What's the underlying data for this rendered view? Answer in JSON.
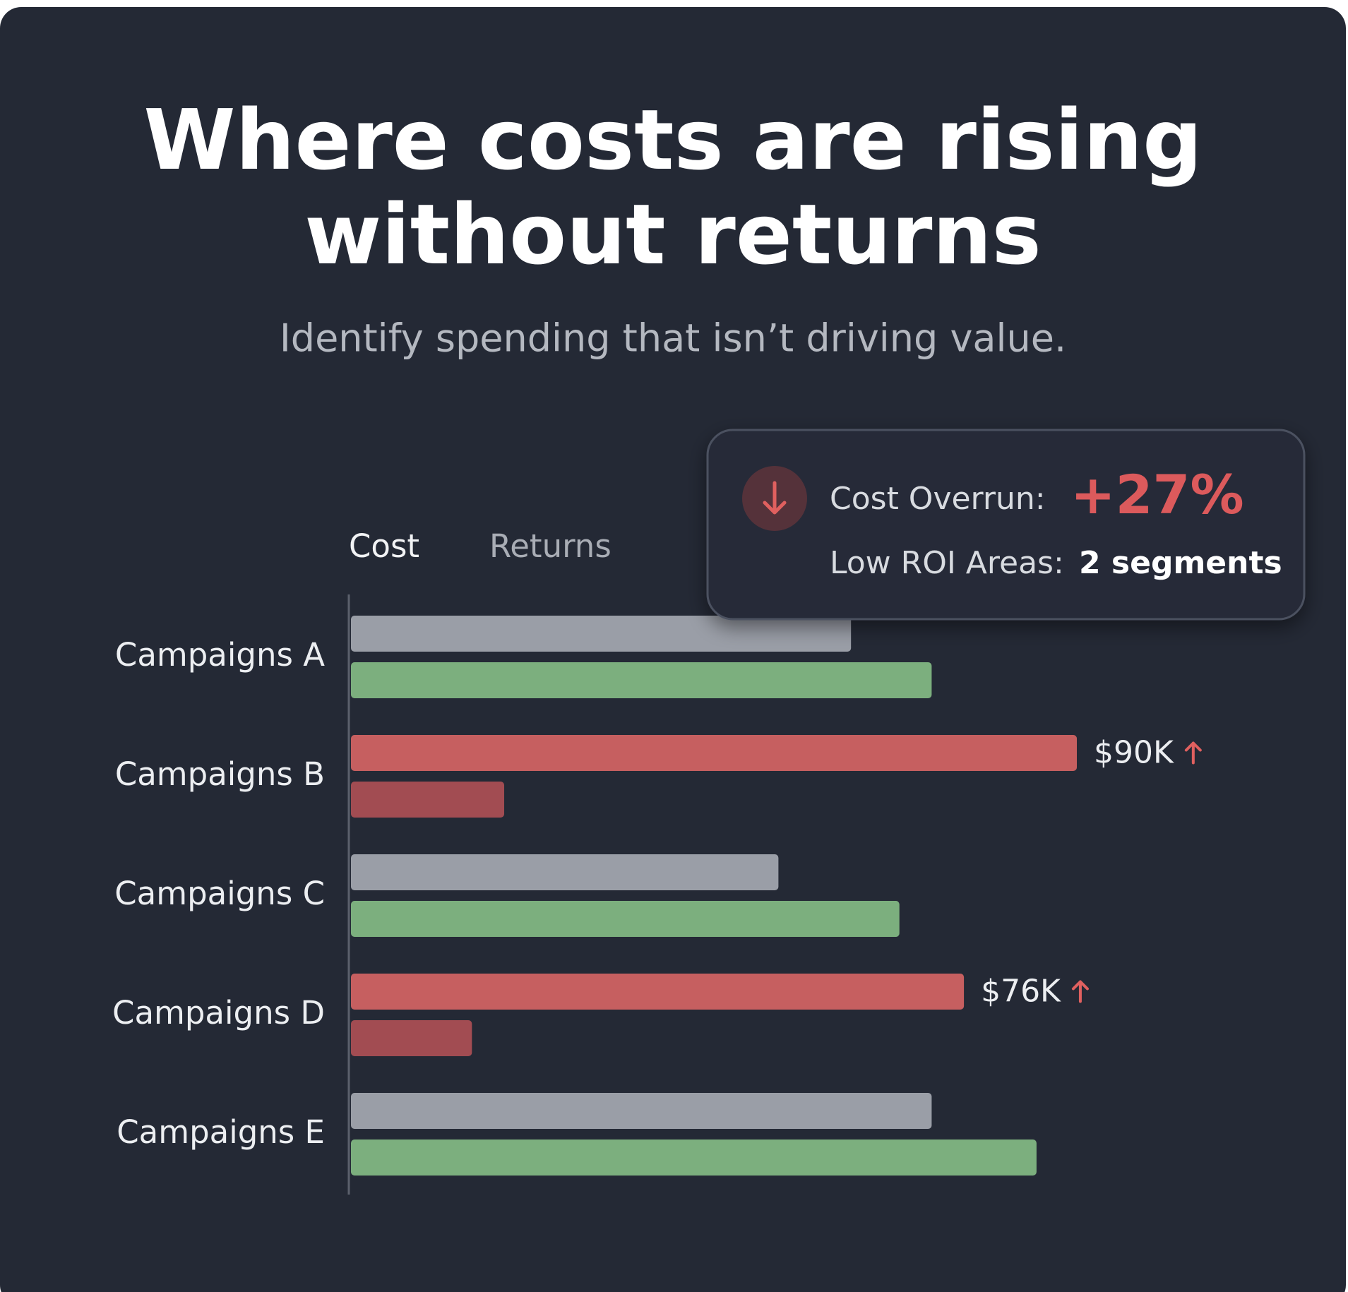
{
  "chart_data": {
    "type": "hbar",
    "title": [
      "Where costs are rising",
      "without returns"
    ],
    "subtitle": "Identify spending that isn’t driving value.",
    "categories": [
      "Campaigns A",
      "Campaigns B",
      "Campaigns C",
      "Campaigns D",
      "Campaigns E"
    ],
    "series": [
      {
        "name": "Cost",
        "color": "#9a9ea7",
        "colors": [
          "#9a9ea7",
          "#c65f60",
          "#9a9ea7",
          "#c65f60",
          "#9a9ea7"
        ],
        "values": [
          62,
          90,
          53,
          76,
          72
        ],
        "value_labels": [
          null,
          "$90K",
          null,
          "$76K",
          null
        ]
      },
      {
        "name": "Returns",
        "color": "#7caf7e",
        "colors": [
          "#7caf7e",
          "#a24c52",
          "#7caf7e",
          "#a24c52",
          "#7caf7e"
        ],
        "values": [
          72,
          19,
          68,
          15,
          85
        ]
      }
    ],
    "callout": {
      "line1_label": "Cost Overrun:",
      "line1_value": "+27%",
      "line2_label": "Low ROI Areas:",
      "line2_value": "2 segments"
    }
  }
}
